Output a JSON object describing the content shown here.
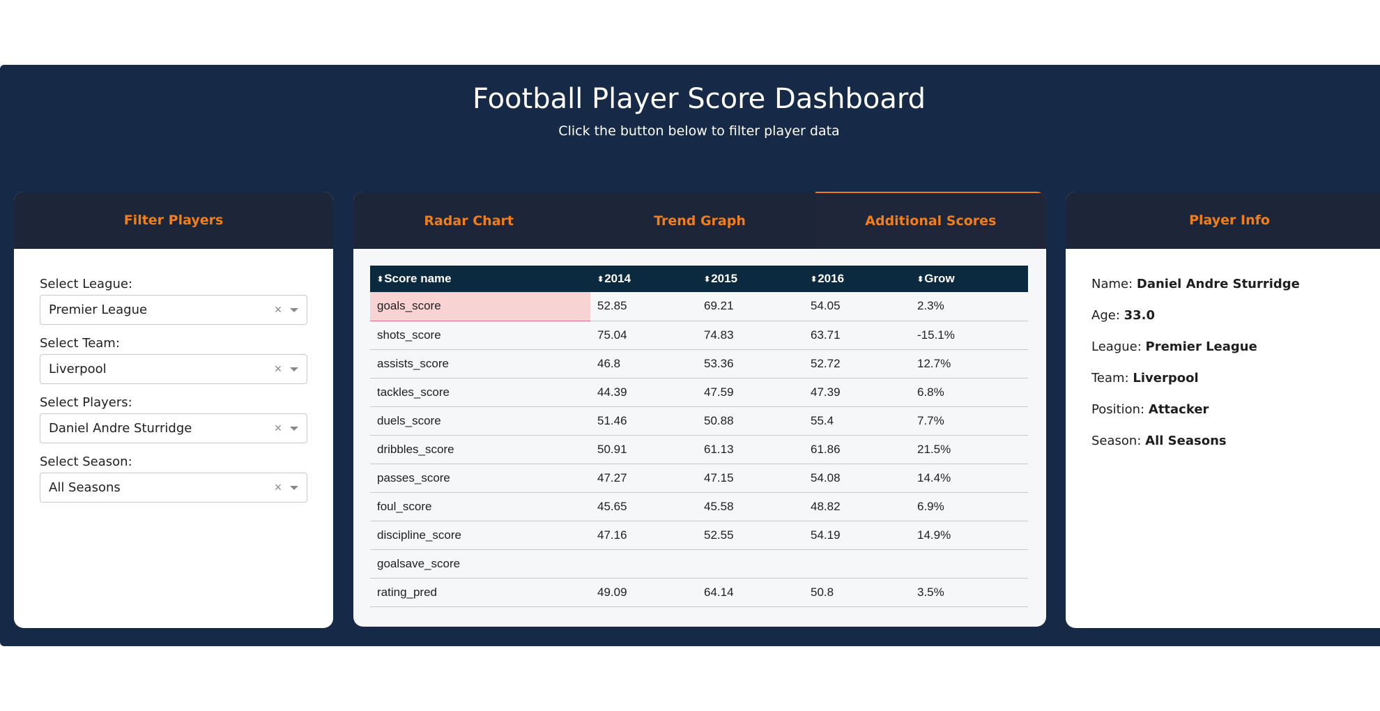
{
  "header": {
    "title": "Football Player Score Dashboard",
    "subtitle": "Click the button below to filter player data"
  },
  "filter": {
    "title": "Filter Players",
    "fields": [
      {
        "label": "Select League:",
        "value": "Premier League"
      },
      {
        "label": "Select Team:",
        "value": "Liverpool"
      },
      {
        "label": "Select Players:",
        "value": "Daniel Andre Sturridge"
      },
      {
        "label": "Select Season:",
        "value": "All Seasons"
      }
    ],
    "clear_glyph": "×"
  },
  "tabs": [
    {
      "label": "Radar Chart",
      "active": false
    },
    {
      "label": "Trend Graph",
      "active": false
    },
    {
      "label": "Additional Scores",
      "active": true
    }
  ],
  "table": {
    "sort_glyph": "⬍",
    "columns": [
      "Score name",
      "2014",
      "2015",
      "2016",
      "Grow"
    ],
    "rows": [
      [
        "goals_score",
        "52.85",
        "69.21",
        "54.05",
        "2.3%"
      ],
      [
        "shots_score",
        "75.04",
        "74.83",
        "63.71",
        "-15.1%"
      ],
      [
        "assists_score",
        "46.8",
        "53.36",
        "52.72",
        "12.7%"
      ],
      [
        "tackles_score",
        "44.39",
        "47.59",
        "47.39",
        "6.8%"
      ],
      [
        "duels_score",
        "51.46",
        "50.88",
        "55.4",
        "7.7%"
      ],
      [
        "dribbles_score",
        "50.91",
        "61.13",
        "61.86",
        "21.5%"
      ],
      [
        "passes_score",
        "47.27",
        "47.15",
        "54.08",
        "14.4%"
      ],
      [
        "foul_score",
        "45.65",
        "45.58",
        "48.82",
        "6.9%"
      ],
      [
        "discipline_score",
        "47.16",
        "52.55",
        "54.19",
        "14.9%"
      ],
      [
        "goalsave_score",
        "",
        "",
        "",
        ""
      ],
      [
        "rating_pred",
        "49.09",
        "64.14",
        "50.8",
        "3.5%"
      ]
    ]
  },
  "player_info": {
    "title": "Player Info",
    "items": [
      {
        "label": "Name:",
        "value": "Daniel Andre Sturridge"
      },
      {
        "label": "Age:",
        "value": "33.0"
      },
      {
        "label": "League:",
        "value": "Premier League"
      },
      {
        "label": "Team:",
        "value": "Liverpool"
      },
      {
        "label": "Position:",
        "value": "Attacker"
      },
      {
        "label": "Season:",
        "value": "All Seasons"
      }
    ]
  },
  "colors": {
    "background": "#162a47",
    "card_header": "#1d2539",
    "accent": "#f07f19",
    "table_header": "#0c2a3f",
    "highlight_cell": "#f8d3d3"
  }
}
